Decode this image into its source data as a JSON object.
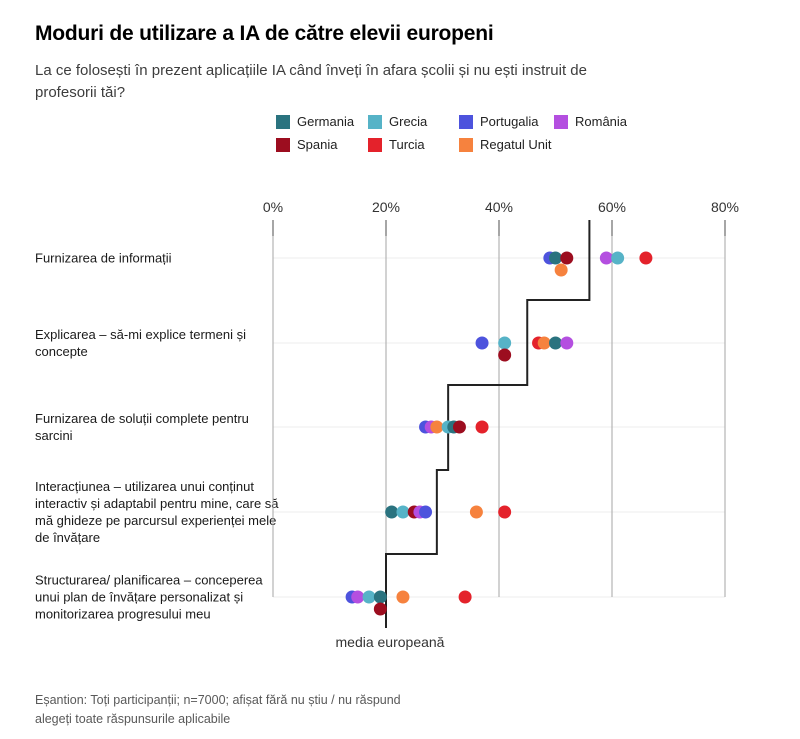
{
  "header": {
    "title": "Moduri de utilizare a IA de către elevii europeni",
    "subtitle": "La ce folosești în prezent aplicațiile IA când înveți în afara școlii și nu ești instruit de profesorii tăi?"
  },
  "chart_data": {
    "type": "scatter",
    "title": "Moduri de utilizare a IA de către elevii europeni",
    "categories": [
      "Furnizarea de informații",
      "Explicarea – să-mi explice termeni și concepte",
      "Furnizarea de soluții complete pentru sarcini",
      "Interacțiunea – utilizarea unui conținut interactiv și adaptabil pentru mine, care să mă ghideze pe parcursul experienței mele de învățare",
      "Structurarea/ planificarea – conceperea unui plan de învățare personalizat și monitorizarea progresului meu"
    ],
    "x_axis": {
      "unit": "%",
      "min": 0,
      "max": 80,
      "tick_labels": [
        "0%",
        "20%",
        "40%",
        "60%",
        "80%"
      ],
      "tick_values": [
        0,
        20,
        40,
        60,
        80
      ],
      "position": "top",
      "grid": true
    },
    "series": [
      {
        "name": "Germania",
        "color": "#2a737f",
        "values": [
          50,
          50,
          32,
          21,
          19
        ]
      },
      {
        "name": "Grecia",
        "color": "#56b3c7",
        "values": [
          61,
          41,
          31,
          23,
          17
        ]
      },
      {
        "name": "Portugalia",
        "color": "#4d53dd",
        "values": [
          49,
          37,
          27,
          27,
          14
        ]
      },
      {
        "name": "România",
        "color": "#b44fe0",
        "values": [
          59,
          52,
          28,
          26,
          15
        ]
      },
      {
        "name": "Spania",
        "color": "#9c0d1f",
        "values": [
          52,
          41,
          33,
          25,
          19
        ]
      },
      {
        "name": "Turcia",
        "color": "#e4222b",
        "values": [
          66,
          47,
          37,
          41,
          34
        ]
      },
      {
        "name": "Regatul Unit",
        "color": "#f6823e",
        "values": [
          51,
          48,
          29,
          36,
          23
        ]
      }
    ],
    "average_line": {
      "label": "media europeană",
      "values": [
        56,
        45,
        31,
        29,
        20
      ],
      "color": "#222222"
    },
    "points_drawn_below_line": [
      {
        "series": "Regatul Unit",
        "category_index": 0
      },
      {
        "series": "Spania",
        "category_index": 1
      },
      {
        "series": "Spania",
        "category_index": 4
      }
    ],
    "legend_position": "top"
  },
  "footnote": {
    "line1": "Eșantion: Toți participanții; n=7000; afișat fără nu știu / nu răspund",
    "line2": "alegeți toate răspunsurile aplicabile"
  }
}
